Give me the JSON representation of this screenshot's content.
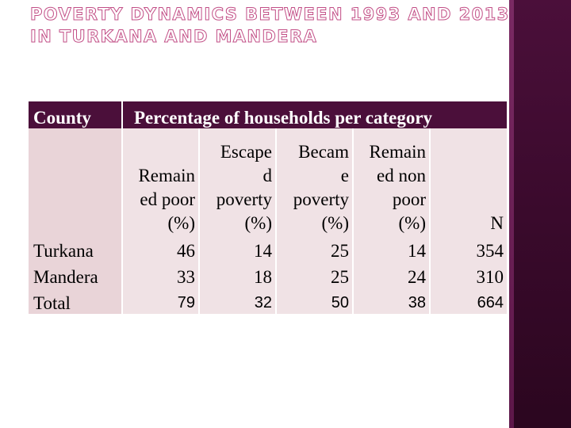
{
  "title": {
    "line1": "POVERTY DYNAMICS BETWEEN 1993 AND 2013",
    "line2": "IN TURKANA AND MANDERA"
  },
  "table": {
    "header_county": "County",
    "header_span": "Percentage of households per category",
    "subheaders": {
      "remained_poor": [
        "Remain",
        "ed poor",
        "(%)"
      ],
      "escaped": [
        "Escape",
        "d",
        "poverty",
        "(%)"
      ],
      "became": [
        "Becam",
        "e",
        "poverty",
        "(%)"
      ],
      "remained_nonpoor": [
        "Remain",
        "ed non",
        "poor",
        "(%)"
      ],
      "n": "N"
    },
    "rows": [
      {
        "county": "Turkana",
        "remained_poor": "46",
        "escaped": "14",
        "became": "25",
        "remained_nonpoor": "14",
        "n": "354"
      },
      {
        "county": "Mandera",
        "remained_poor": "33",
        "escaped": "18",
        "became": "25",
        "remained_nonpoor": "24",
        "n": "310"
      },
      {
        "county": "Total",
        "remained_poor": "79",
        "escaped": "32",
        "became": "50",
        "remained_nonpoor": "38",
        "n": "664"
      }
    ]
  },
  "colors": {
    "header_bg": "#4b0f3a",
    "cell_bg": "#f0e2e5",
    "title_outline": "#c24e86",
    "sidebar": "#3a0a2c"
  }
}
